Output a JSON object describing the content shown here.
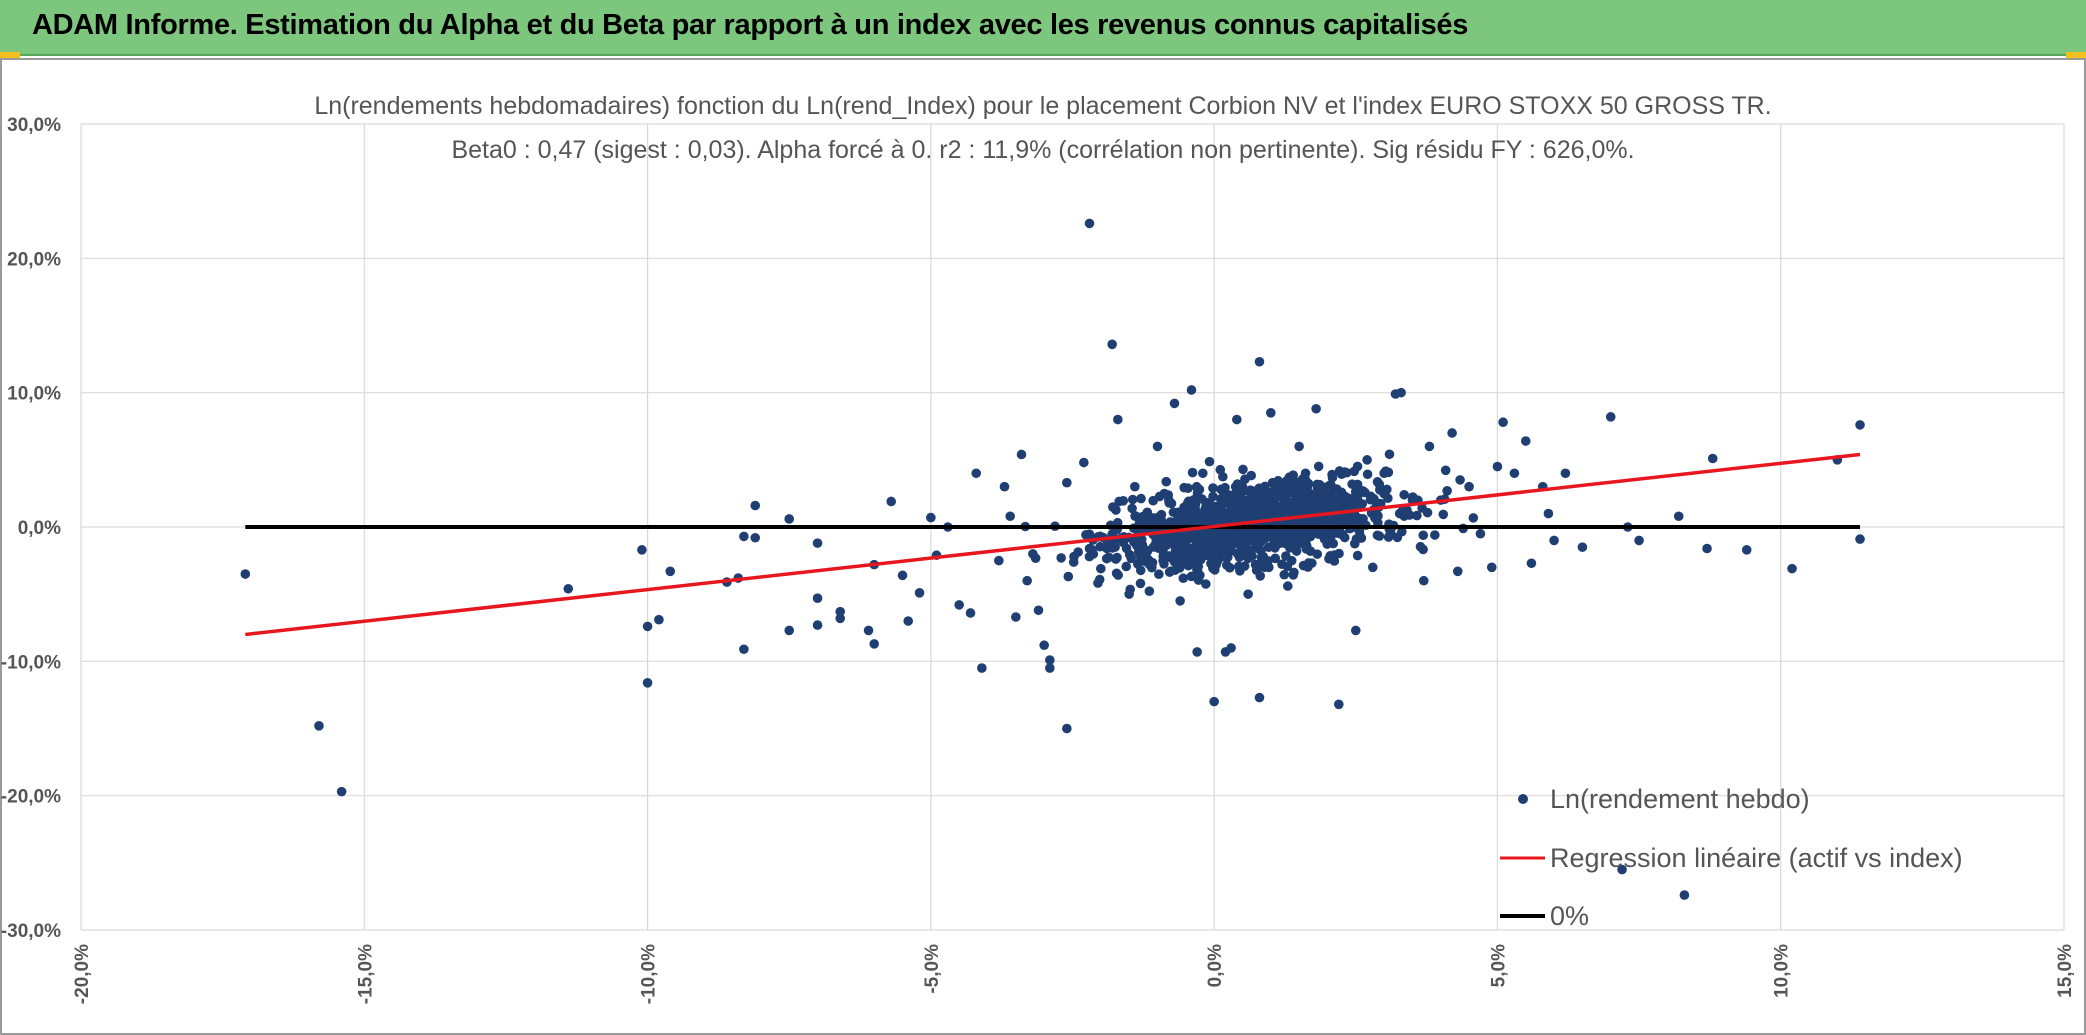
{
  "header": {
    "title": "ADAM Informe. Estimation du Alpha et du Beta par rapport à un index avec les revenus connus capitalisés"
  },
  "colors": {
    "banner": "#7dc67d",
    "points": "#1f3f73",
    "regression": "#e8171f",
    "zero_line": "#000000",
    "grid": "#d9d9d9",
    "text": "#555555"
  },
  "chart_data": {
    "type": "scatter",
    "title": "Ln(rendements hebdomadaires) fonction du Ln(rend_Index) pour le placement Corbion NV et l'index EURO STOXX 50 GROSS TR.",
    "subtitle": "Beta0 : 0,47 (sigest : 0,03). Alpha forcé à 0. r2 : 11,9% (corrélation non pertinente). Sig résidu FY : 626,0%.",
    "xlabel": "",
    "ylabel": "",
    "xlim": [
      -0.2,
      0.15
    ],
    "ylim": [
      -0.3,
      0.3
    ],
    "x_ticks": [
      -0.2,
      -0.15,
      -0.1,
      -0.05,
      0.0,
      0.05,
      0.1,
      0.15
    ],
    "y_ticks": [
      -0.3,
      -0.2,
      -0.1,
      0.0,
      0.1,
      0.2,
      0.3
    ],
    "x_tick_labels": [
      "-20,0%",
      "-15,0%",
      "-10,0%",
      "-5,0%",
      "0,0%",
      "5,0%",
      "10,0%",
      "15,0%"
    ],
    "y_tick_labels": [
      "-30,0%",
      "-20,0%",
      "-10,0%",
      "0,0%",
      "10,0%",
      "20,0%",
      "30,0%"
    ],
    "grid": true,
    "legend_position": "bottom-right",
    "series": [
      {
        "name": "Ln(rendement hebdo)",
        "kind": "points",
        "points": [
          [
            -0.171,
            -0.035
          ],
          [
            -0.158,
            -0.148
          ],
          [
            -0.154,
            -0.197
          ],
          [
            -0.114,
            -0.046
          ],
          [
            -0.101,
            -0.017
          ],
          [
            -0.1,
            -0.074
          ],
          [
            -0.1,
            -0.116
          ],
          [
            -0.098,
            -0.069
          ],
          [
            -0.096,
            -0.033
          ],
          [
            -0.086,
            -0.041
          ],
          [
            -0.084,
            -0.038
          ],
          [
            -0.083,
            -0.091
          ],
          [
            -0.083,
            -0.007
          ],
          [
            -0.081,
            0.016
          ],
          [
            -0.081,
            -0.008
          ],
          [
            -0.075,
            0.006
          ],
          [
            -0.075,
            -0.077
          ],
          [
            -0.07,
            -0.012
          ],
          [
            -0.07,
            -0.053
          ],
          [
            -0.07,
            -0.073
          ],
          [
            -0.066,
            -0.068
          ],
          [
            -0.066,
            -0.063
          ],
          [
            -0.061,
            -0.077
          ],
          [
            -0.06,
            -0.087
          ],
          [
            -0.06,
            -0.028
          ],
          [
            -0.057,
            0.019
          ],
          [
            -0.055,
            -0.036
          ],
          [
            -0.054,
            -0.07
          ],
          [
            -0.052,
            -0.049
          ],
          [
            -0.05,
            0.007
          ],
          [
            -0.049,
            -0.021
          ],
          [
            -0.047,
            0.0
          ],
          [
            -0.045,
            -0.058
          ],
          [
            -0.043,
            -0.064
          ],
          [
            -0.042,
            0.04
          ],
          [
            -0.041,
            -0.105
          ],
          [
            -0.038,
            -0.025
          ],
          [
            -0.037,
            0.03
          ],
          [
            -0.036,
            0.008
          ],
          [
            -0.035,
            -0.067
          ],
          [
            -0.034,
            0.054
          ],
          [
            -0.033,
            -0.04
          ],
          [
            -0.032,
            -0.02
          ],
          [
            -0.031,
            -0.062
          ],
          [
            -0.03,
            -0.088
          ],
          [
            -0.029,
            -0.099
          ],
          [
            -0.029,
            -0.105
          ],
          [
            -0.027,
            -0.023
          ],
          [
            -0.026,
            0.033
          ],
          [
            -0.026,
            -0.15
          ],
          [
            -0.023,
            0.048
          ],
          [
            -0.022,
            0.226
          ],
          [
            -0.022,
            -0.016
          ],
          [
            -0.02,
            -0.031
          ],
          [
            -0.018,
            0.136
          ],
          [
            -0.017,
            0.08
          ],
          [
            -0.015,
            -0.05
          ],
          [
            -0.014,
            0.03
          ],
          [
            -0.013,
            -0.042
          ],
          [
            -0.012,
            0.0
          ],
          [
            -0.01,
            0.06
          ],
          [
            -0.009,
            -0.025
          ],
          [
            -0.008,
            0.02
          ],
          [
            -0.007,
            0.092
          ],
          [
            -0.006,
            -0.055
          ],
          [
            -0.005,
            0.01
          ],
          [
            -0.004,
            0.102
          ],
          [
            -0.003,
            -0.093
          ],
          [
            -0.002,
            0.04
          ],
          [
            0.0,
            -0.02
          ],
          [
            0.0,
            -0.13
          ],
          [
            0.002,
            -0.093
          ],
          [
            0.003,
            -0.09
          ],
          [
            0.004,
            0.08
          ],
          [
            0.005,
            0.03
          ],
          [
            0.006,
            -0.05
          ],
          [
            0.007,
            0.015
          ],
          [
            0.008,
            -0.127
          ],
          [
            0.008,
            0.123
          ],
          [
            0.01,
            0.085
          ],
          [
            0.012,
            0.005
          ],
          [
            0.013,
            -0.044
          ],
          [
            0.015,
            0.06
          ],
          [
            0.017,
            -0.018
          ],
          [
            0.018,
            0.088
          ],
          [
            0.02,
            0.03
          ],
          [
            0.022,
            -0.132
          ],
          [
            0.024,
            0.01
          ],
          [
            0.025,
            -0.077
          ],
          [
            0.027,
            0.05
          ],
          [
            0.028,
            -0.03
          ],
          [
            0.03,
            0.04
          ],
          [
            0.032,
            0.099
          ],
          [
            0.033,
            0.1
          ],
          [
            0.035,
            0.02
          ],
          [
            0.037,
            -0.04
          ],
          [
            0.038,
            0.06
          ],
          [
            0.04,
            0.02
          ],
          [
            0.042,
            0.07
          ],
          [
            0.043,
            -0.033
          ],
          [
            0.045,
            0.03
          ],
          [
            0.047,
            -0.005
          ],
          [
            0.049,
            -0.03
          ],
          [
            0.05,
            0.045
          ],
          [
            0.051,
            0.078
          ],
          [
            0.053,
            0.04
          ],
          [
            0.055,
            0.064
          ],
          [
            0.056,
            -0.027
          ],
          [
            0.058,
            0.03
          ],
          [
            0.059,
            0.01
          ],
          [
            0.06,
            -0.01
          ],
          [
            0.062,
            0.04
          ],
          [
            0.065,
            -0.015
          ],
          [
            0.07,
            0.082
          ],
          [
            0.072,
            -0.255
          ],
          [
            0.073,
            0.0
          ],
          [
            0.075,
            -0.01
          ],
          [
            0.082,
            0.008
          ],
          [
            0.083,
            -0.274
          ],
          [
            0.087,
            -0.016
          ],
          [
            0.088,
            0.051
          ],
          [
            0.094,
            -0.017
          ],
          [
            0.102,
            -0.031
          ],
          [
            0.11,
            0.05
          ],
          [
            0.114,
            0.076
          ],
          [
            0.114,
            -0.009
          ]
        ]
      },
      {
        "name": "Regression linéaire (actif vs index)",
        "kind": "line",
        "points": [
          [
            -0.171,
            -0.08
          ],
          [
            0.114,
            0.054
          ]
        ]
      },
      {
        "name": "0%",
        "kind": "line",
        "points": [
          [
            -0.171,
            0.0
          ],
          [
            0.114,
            0.0
          ]
        ]
      }
    ]
  }
}
